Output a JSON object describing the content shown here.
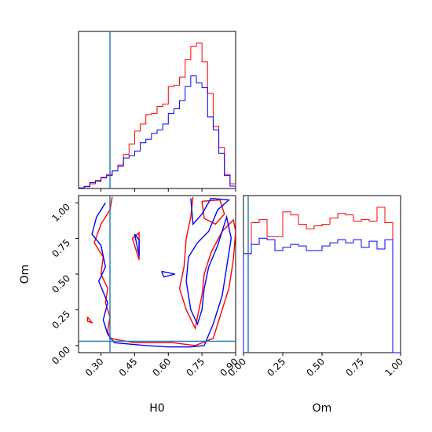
{
  "chart_data": {
    "type": "corner",
    "parameters": [
      "H0",
      "Om"
    ],
    "truths": {
      "H0": 0.34,
      "Om": 0.03
    },
    "colors": {
      "series_a": "#ff0000",
      "series_b": "#0000ff",
      "truth": "#1f77b4"
    },
    "panels": [
      {
        "type": "histogram",
        "param": "H0",
        "range": [
          0.2,
          0.9
        ],
        "bins": 28,
        "series": [
          {
            "color": "red",
            "counts": [
              0.05,
              0.18,
              0.4,
              0.7,
              0.95,
              1.2,
              1.5,
              2.0,
              2.9,
              3.8,
              4.9,
              5.5,
              6.3,
              6.4,
              7.0,
              7.2,
              8.7,
              8.8,
              9.5,
              11.0,
              12.1,
              12.4,
              10.8,
              8.1,
              5.3,
              3.5,
              1.2,
              0.4
            ]
          },
          {
            "color": "blue",
            "counts": [
              0.05,
              0.15,
              0.5,
              0.6,
              0.9,
              1.1,
              1.5,
              1.9,
              2.6,
              2.8,
              3.2,
              3.9,
              4.2,
              4.7,
              5.0,
              5.5,
              6.4,
              6.8,
              7.5,
              8.7,
              9.6,
              9.0,
              8.6,
              6.1,
              5.0,
              3.0,
              1.1,
              0.2
            ]
          }
        ]
      },
      {
        "type": "histogram",
        "param": "Om",
        "range": [
          0.0,
          1.0
        ],
        "bins": 20,
        "series": [
          {
            "color": "red",
            "counts": [
              6.4,
              8.4,
              8.6,
              7.5,
              7.5,
              9.1,
              8.9,
              8.3,
              8.0,
              8.2,
              8.3,
              8.7,
              9.0,
              8.9,
              8.5,
              8.6,
              8.5,
              9.4,
              8.4,
              0.0
            ]
          },
          {
            "color": "blue",
            "counts": [
              6.4,
              7.0,
              7.4,
              7.3,
              6.6,
              6.8,
              7.0,
              6.9,
              6.6,
              6.6,
              6.9,
              7.1,
              7.3,
              7.1,
              7.3,
              6.8,
              7.2,
              6.7,
              7.3,
              0.0
            ]
          }
        ]
      },
      {
        "type": "contour",
        "params": [
          "H0",
          "Om"
        ],
        "xlim": [
          0.2,
          0.9
        ],
        "ylim": [
          -0.05,
          1.05
        ],
        "series": [
          {
            "color": "red",
            "contours": [
              [
                [
                  0.35,
                  1.04
                ],
                [
                  0.34,
                  0.95
                ],
                [
                  0.3,
                  0.85
                ],
                [
                  0.27,
                  0.72
                ],
                [
                  0.31,
                  0.62
                ],
                [
                  0.3,
                  0.5
                ],
                [
                  0.33,
                  0.4
                ],
                [
                  0.32,
                  0.3
                ],
                [
                  0.34,
                  0.2
                ],
                [
                  0.33,
                  0.1
                ],
                [
                  0.34,
                  0.05
                ],
                [
                  0.45,
                  0.02
                ],
                [
                  0.62,
                  0.02
                ],
                [
                  0.72,
                  0.0
                ],
                [
                  0.8,
                  0.05
                ],
                [
                  0.83,
                  0.2
                ],
                [
                  0.87,
                  0.4
                ],
                [
                  0.89,
                  0.6
                ],
                [
                  0.9,
                  0.8
                ],
                [
                  0.89,
                  0.88
                ],
                [
                  0.84,
                  0.8
                ],
                [
                  0.79,
                  0.65
                ],
                [
                  0.76,
                  0.5
                ],
                [
                  0.75,
                  0.35
                ],
                [
                  0.73,
                  0.2
                ],
                [
                  0.72,
                  0.12
                ],
                [
                  0.68,
                  0.25
                ],
                [
                  0.65,
                  0.4
                ],
                [
                  0.67,
                  0.55
                ],
                [
                  0.68,
                  0.75
                ],
                [
                  0.7,
                  0.9
                ],
                [
                  0.71,
                  1.04
                ]
              ],
              [
                [
                  0.75,
                  1.01
                ],
                [
                  0.83,
                  1.02
                ],
                [
                  0.85,
                  0.92
                ],
                [
                  0.81,
                  0.85
                ],
                [
                  0.76,
                  0.89
                ],
                [
                  0.75,
                  1.01
                ]
              ],
              [
                [
                  0.47,
                  0.6
                ],
                [
                  0.44,
                  0.75
                ],
                [
                  0.47,
                  0.79
                ],
                [
                  0.47,
                  0.6
                ]
              ],
              [
                [
                  0.24,
                  0.2
                ],
                [
                  0.26,
                  0.16
                ],
                [
                  0.24,
                  0.17
                ],
                [
                  0.24,
                  0.2
                ]
              ]
            ]
          },
          {
            "color": "blue",
            "contours": [
              [
                [
                  0.32,
                  1.0
                ],
                [
                  0.28,
                  0.9
                ],
                [
                  0.26,
                  0.78
                ],
                [
                  0.3,
                  0.7
                ],
                [
                  0.32,
                  0.55
                ],
                [
                  0.29,
                  0.45
                ],
                [
                  0.33,
                  0.3
                ],
                [
                  0.31,
                  0.18
                ],
                [
                  0.33,
                  0.08
                ],
                [
                  0.36,
                  0.02
                ],
                [
                  0.5,
                  0.0
                ],
                [
                  0.6,
                  -0.01
                ],
                [
                  0.7,
                  -0.01
                ],
                [
                  0.76,
                  0.0
                ],
                [
                  0.8,
                  0.15
                ],
                [
                  0.84,
                  0.35
                ],
                [
                  0.86,
                  0.55
                ],
                [
                  0.88,
                  0.75
                ],
                [
                  0.86,
                  0.9
                ],
                [
                  0.82,
                  0.7
                ],
                [
                  0.78,
                  0.55
                ],
                [
                  0.76,
                  0.4
                ],
                [
                  0.75,
                  0.25
                ],
                [
                  0.73,
                  0.15
                ],
                [
                  0.7,
                  0.25
                ],
                [
                  0.68,
                  0.45
                ],
                [
                  0.69,
                  0.62
                ],
                [
                  0.73,
                  0.72
                ],
                [
                  0.78,
                  0.8
                ],
                [
                  0.82,
                  0.95
                ],
                [
                  0.87,
                  1.02
                ],
                [
                  0.79,
                  1.03
                ],
                [
                  0.75,
                  0.92
                ],
                [
                  0.71,
                  0.85
                ],
                [
                  0.7,
                  1.03
                ]
              ],
              [
                [
                  0.47,
                  0.63
                ],
                [
                  0.45,
                  0.78
                ],
                [
                  0.47,
                  0.74
                ],
                [
                  0.47,
                  0.63
                ]
              ],
              [
                [
                  0.57,
                  0.52
                ],
                [
                  0.63,
                  0.5
                ],
                [
                  0.58,
                  0.48
                ],
                [
                  0.57,
                  0.52
                ]
              ]
            ]
          }
        ]
      }
    ],
    "xlabel": "H0",
    "ylabel": "Om",
    "xlabel_bottom_right": "Om",
    "ticks": {
      "H0": [
        "0.30",
        "0.45",
        "0.60",
        "0.75",
        "0.90"
      ],
      "Om": [
        "0.00",
        "0.25",
        "0.50",
        "0.75",
        "1.00"
      ]
    },
    "grid": false
  }
}
